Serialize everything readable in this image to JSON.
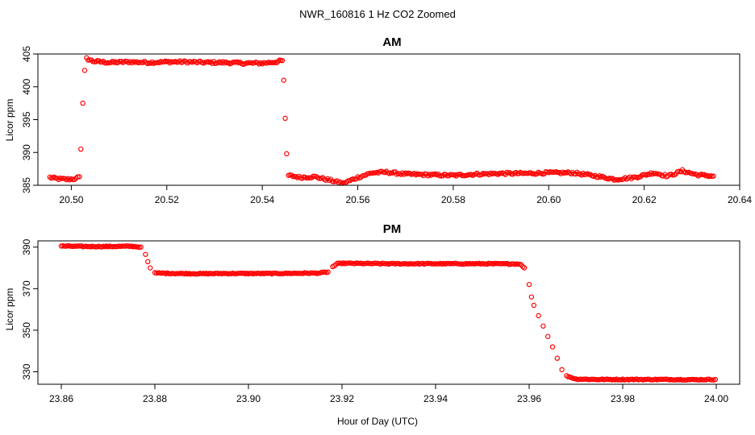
{
  "figure": {
    "title": "NWR_160816  1 Hz CO2 Zoomed",
    "xlabel": "Hour of Day (UTC)",
    "point_color": "#ff0000"
  },
  "chart_data": [
    {
      "type": "scatter",
      "title": "AM",
      "xlabel": "",
      "ylabel": "Licor ppm",
      "xlim": [
        20.493,
        20.64
      ],
      "ylim": [
        385,
        405
      ],
      "xticks": [
        "20.50",
        "20.52",
        "20.54",
        "20.56",
        "20.58",
        "20.60",
        "20.62",
        "20.64"
      ],
      "xtick_values": [
        20.5,
        20.52,
        20.54,
        20.56,
        20.58,
        20.6,
        20.62,
        20.64
      ],
      "yticks": [
        "385",
        "390",
        "395",
        "400",
        "405"
      ],
      "ytick_values": [
        385,
        390,
        395,
        400,
        405
      ],
      "grid": false,
      "series_shape": [
        [
          20.4955,
          386.2
        ],
        [
          20.497,
          386.0
        ],
        [
          20.499,
          385.9
        ],
        [
          20.501,
          386.0
        ],
        [
          20.5017,
          386.3
        ],
        [
          20.502,
          390.5
        ],
        [
          20.5024,
          397.5
        ],
        [
          20.5028,
          402.5
        ],
        [
          20.5032,
          404.3
        ],
        [
          20.5045,
          403.9
        ],
        [
          20.508,
          403.7
        ],
        [
          20.512,
          403.8
        ],
        [
          20.516,
          403.7
        ],
        [
          20.52,
          403.8
        ],
        [
          20.524,
          403.8
        ],
        [
          20.528,
          403.7
        ],
        [
          20.532,
          403.7
        ],
        [
          20.536,
          403.6
        ],
        [
          20.54,
          403.6
        ],
        [
          20.543,
          403.8
        ],
        [
          20.5442,
          404.0
        ],
        [
          20.5445,
          401.0
        ],
        [
          20.5448,
          395.2
        ],
        [
          20.5451,
          389.8
        ],
        [
          20.5455,
          386.5
        ],
        [
          20.548,
          386.2
        ],
        [
          20.551,
          386.3
        ],
        [
          20.554,
          385.8
        ],
        [
          20.557,
          385.3
        ],
        [
          20.56,
          386.2
        ],
        [
          20.563,
          386.9
        ],
        [
          20.566,
          387.0
        ],
        [
          20.57,
          386.7
        ],
        [
          20.575,
          386.6
        ],
        [
          20.58,
          386.5
        ],
        [
          20.585,
          386.7
        ],
        [
          20.59,
          386.8
        ],
        [
          20.595,
          386.8
        ],
        [
          20.6,
          386.9
        ],
        [
          20.605,
          386.9
        ],
        [
          20.61,
          386.4
        ],
        [
          20.614,
          385.9
        ],
        [
          20.618,
          386.2
        ],
        [
          20.622,
          386.9
        ],
        [
          20.625,
          386.4
        ],
        [
          20.628,
          387.2
        ],
        [
          20.631,
          386.6
        ],
        [
          20.6345,
          386.4
        ]
      ]
    },
    {
      "type": "scatter",
      "title": "PM",
      "xlabel": "",
      "ylabel": "Licor ppm",
      "xlim": [
        23.855,
        24.005
      ],
      "ylim": [
        324,
        393
      ],
      "xticks": [
        "23.86",
        "23.88",
        "23.90",
        "23.92",
        "23.94",
        "23.96",
        "23.98",
        "24.00"
      ],
      "xtick_values": [
        23.86,
        23.88,
        23.9,
        23.92,
        23.94,
        23.96,
        23.98,
        24.0
      ],
      "yticks": [
        "330",
        "350",
        "370",
        "390"
      ],
      "ytick_values": [
        330,
        350,
        370,
        390
      ],
      "grid": false,
      "series_shape": [
        [
          23.86,
          390.5
        ],
        [
          23.865,
          390.3
        ],
        [
          23.87,
          390.3
        ],
        [
          23.875,
          390.4
        ],
        [
          23.877,
          390.0
        ],
        [
          23.878,
          386.5
        ],
        [
          23.8785,
          383.0
        ],
        [
          23.879,
          380.0
        ],
        [
          23.88,
          377.5
        ],
        [
          23.885,
          377.3
        ],
        [
          23.89,
          377.2
        ],
        [
          23.895,
          377.3
        ],
        [
          23.9,
          377.3
        ],
        [
          23.905,
          377.3
        ],
        [
          23.91,
          377.4
        ],
        [
          23.915,
          377.5
        ],
        [
          23.917,
          378.0
        ],
        [
          23.918,
          380.5
        ],
        [
          23.919,
          382.0
        ],
        [
          23.92,
          382.2
        ],
        [
          23.93,
          382.0
        ],
        [
          23.94,
          382.0
        ],
        [
          23.95,
          382.0
        ],
        [
          23.958,
          381.9
        ],
        [
          23.959,
          380.0
        ],
        [
          23.96,
          372.0
        ],
        [
          23.9605,
          366.0
        ],
        [
          23.961,
          362.0
        ],
        [
          23.962,
          357.0
        ],
        [
          23.963,
          352.0
        ],
        [
          23.964,
          347.0
        ],
        [
          23.965,
          342.0
        ],
        [
          23.966,
          336.5
        ],
        [
          23.967,
          331.0
        ],
        [
          23.968,
          328.0
        ],
        [
          23.97,
          326.5
        ],
        [
          23.975,
          326.3
        ],
        [
          23.98,
          326.3
        ],
        [
          23.985,
          326.3
        ],
        [
          23.99,
          326.3
        ],
        [
          23.995,
          326.2
        ],
        [
          23.9998,
          326.3
        ]
      ]
    }
  ]
}
